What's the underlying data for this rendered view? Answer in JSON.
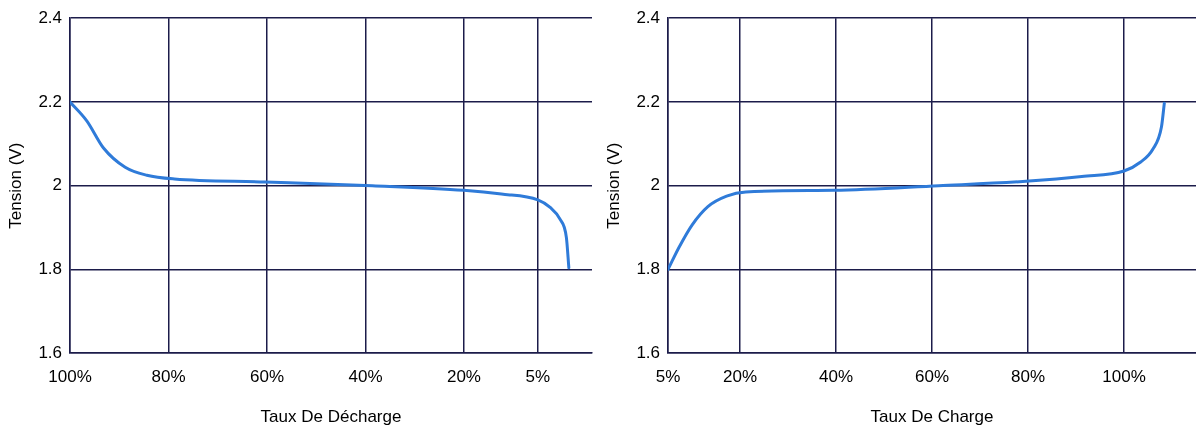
{
  "chart_data": [
    {
      "type": "line",
      "xlabel": "Taux De Décharge",
      "ylabel": "Tension (V)",
      "color": "#2f7bd9",
      "marker": "none",
      "grid": true,
      "x": [
        100,
        96.6,
        93.2,
        88.8,
        84.4,
        78.8,
        60.4,
        38.6,
        20,
        12.4,
        5,
        2.5,
        0.5,
        -0.8,
        -1.3
      ],
      "values": [
        2.2,
        2.155,
        2.09,
        2.044,
        2.025,
        2.016,
        2.009,
        2.0,
        1.989,
        1.98,
        1.966,
        1.948,
        1.92,
        1.876,
        1.804
      ],
      "xlim": [
        100,
        -6
      ],
      "xticks": [
        {
          "value": 100,
          "label": "100%"
        },
        {
          "value": 80,
          "label": "80%"
        },
        {
          "value": 60,
          "label": "60%"
        },
        {
          "value": 40,
          "label": "40%"
        },
        {
          "value": 20,
          "label": "20%"
        },
        {
          "value": 5,
          "label": "5%"
        }
      ],
      "ylim": [
        1.6,
        2.4
      ],
      "yticks": [
        1.6,
        1.8,
        2,
        2.2,
        2.4
      ]
    },
    {
      "type": "line",
      "xlabel": "Taux De Charge",
      "ylabel": "Tension (V)",
      "color": "#2f7bd9",
      "marker": "none",
      "grid": true,
      "x": [
        5,
        7.3,
        10,
        13.3,
        17.2,
        21.2,
        39.6,
        61.4,
        80.2,
        91.2,
        100,
        103.4,
        106,
        107.8,
        108.4
      ],
      "values": [
        1.8,
        1.853,
        1.906,
        1.95,
        1.975,
        1.985,
        1.989,
        2.0,
        2.011,
        2.022,
        2.035,
        2.056,
        2.087,
        2.14,
        2.197
      ],
      "xlim": [
        5,
        115
      ],
      "xticks": [
        {
          "value": 5,
          "label": "5%"
        },
        {
          "value": 20,
          "label": "20%"
        },
        {
          "value": 40,
          "label": "40%"
        },
        {
          "value": 60,
          "label": "60%"
        },
        {
          "value": 80,
          "label": "80%"
        },
        {
          "value": 100,
          "label": "100%"
        }
      ],
      "ylim": [
        1.6,
        2.4
      ],
      "yticks": [
        1.6,
        1.8,
        2,
        2.2,
        2.4
      ]
    }
  ]
}
